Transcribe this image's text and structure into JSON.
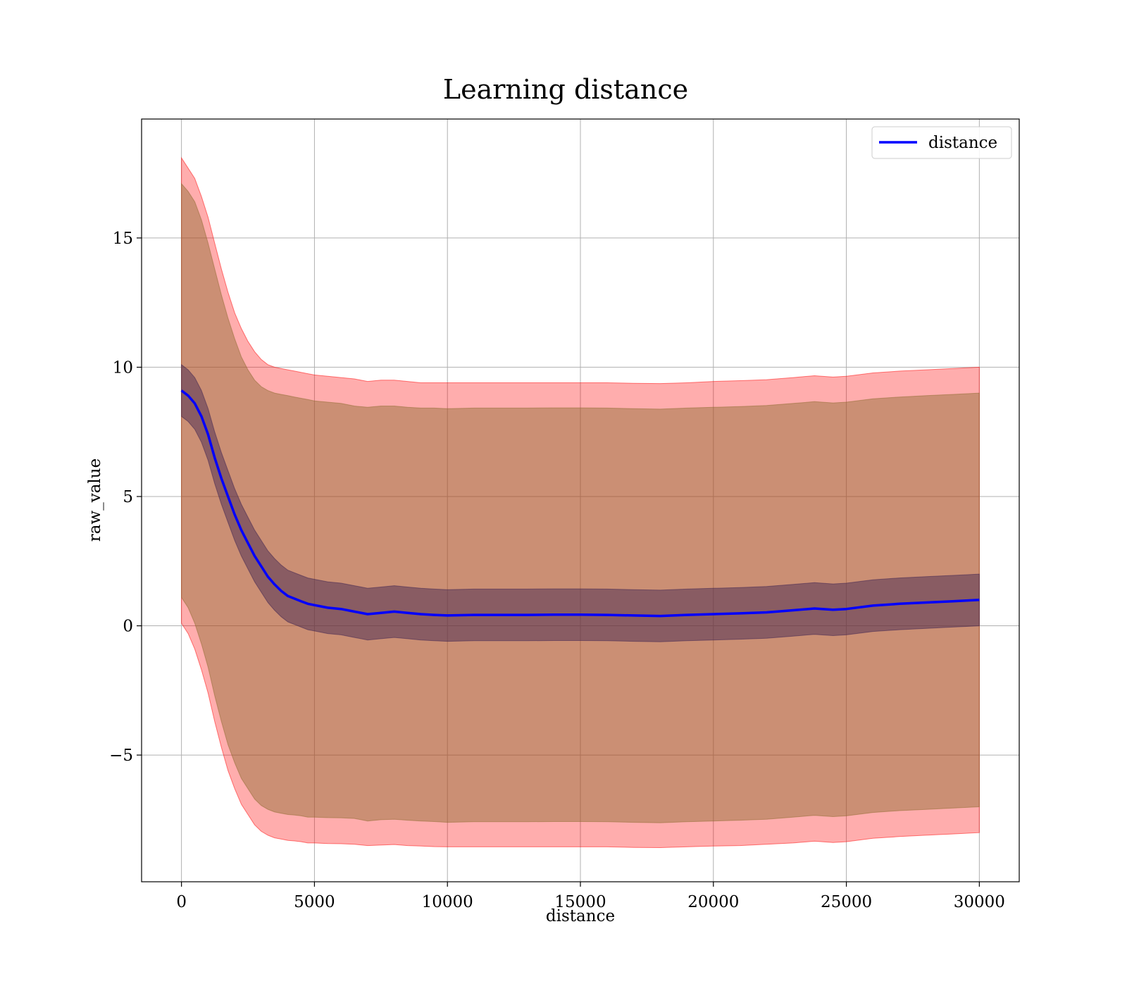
{
  "chart_data": {
    "type": "line",
    "title": "Learning distance",
    "xlabel": "distance",
    "ylabel": "raw_value",
    "xlim": [
      -1500,
      31500
    ],
    "ylim": [
      -9.9,
      19.6
    ],
    "xticks": [
      0,
      5000,
      10000,
      15000,
      20000,
      25000,
      30000
    ],
    "xtick_labels": [
      "0",
      "5000",
      "10000",
      "15000",
      "20000",
      "25000",
      "30000"
    ],
    "yticks": [
      -5,
      0,
      5,
      10,
      15
    ],
    "ytick_labels": [
      "−5",
      "0",
      "5",
      "10",
      "15"
    ],
    "grid": true,
    "legend": {
      "position": "upper-right",
      "entries": [
        "distance"
      ]
    },
    "colors": {
      "line": "#0000ff",
      "band_outer": "#ff0000",
      "band_mid": "#8b6a2e",
      "band_inner": "#3a2050"
    },
    "x": [
      0,
      250,
      500,
      750,
      1000,
      1250,
      1500,
      1750,
      2000,
      2250,
      2500,
      2750,
      3000,
      3250,
      3500,
      3750,
      4000,
      4250,
      4500,
      4750,
      5000,
      5500,
      6000,
      6500,
      7000,
      7500,
      8000,
      8500,
      9000,
      9500,
      10000,
      11000,
      12000,
      13000,
      14000,
      15000,
      16000,
      17000,
      18000,
      19000,
      20000,
      21000,
      22000,
      23000,
      23800,
      24500,
      25000,
      26000,
      27000,
      28000,
      29000,
      30000
    ],
    "series": [
      {
        "name": "distance",
        "values": [
          9.1,
          8.9,
          8.6,
          8.1,
          7.4,
          6.5,
          5.7,
          5.0,
          4.3,
          3.7,
          3.2,
          2.7,
          2.3,
          1.9,
          1.6,
          1.35,
          1.15,
          1.05,
          0.95,
          0.85,
          0.8,
          0.7,
          0.65,
          0.55,
          0.45,
          0.5,
          0.55,
          0.5,
          0.45,
          0.42,
          0.4,
          0.42,
          0.42,
          0.42,
          0.43,
          0.43,
          0.42,
          0.4,
          0.38,
          0.42,
          0.45,
          0.48,
          0.52,
          0.6,
          0.67,
          0.62,
          0.65,
          0.78,
          0.85,
          0.9,
          0.95,
          1.0
        ]
      }
    ],
    "bands": [
      {
        "upper": [
          18.1,
          17.7,
          17.3,
          16.6,
          15.8,
          14.8,
          13.8,
          12.9,
          12.1,
          11.5,
          11.0,
          10.6,
          10.3,
          10.1,
          10.0,
          9.95,
          9.9,
          9.85,
          9.8,
          9.75,
          9.7,
          9.65,
          9.6,
          9.55,
          9.45,
          9.5,
          9.5,
          9.45,
          9.4,
          9.4,
          9.4,
          9.4,
          9.4,
          9.4,
          9.4,
          9.4,
          9.4,
          9.38,
          9.37,
          9.4,
          9.45,
          9.48,
          9.52,
          9.6,
          9.67,
          9.62,
          9.65,
          9.78,
          9.85,
          9.9,
          9.95,
          10.0
        ],
        "lower": [
          0.1,
          -0.3,
          -0.9,
          -1.7,
          -2.6,
          -3.7,
          -4.7,
          -5.6,
          -6.3,
          -6.9,
          -7.3,
          -7.7,
          -7.95,
          -8.1,
          -8.2,
          -8.25,
          -8.3,
          -8.32,
          -8.35,
          -8.4,
          -8.4,
          -8.42,
          -8.43,
          -8.45,
          -8.5,
          -8.48,
          -8.46,
          -8.5,
          -8.52,
          -8.54,
          -8.55,
          -8.55,
          -8.55,
          -8.55,
          -8.55,
          -8.55,
          -8.55,
          -8.57,
          -8.58,
          -8.55,
          -8.52,
          -8.5,
          -8.45,
          -8.4,
          -8.33,
          -8.38,
          -8.35,
          -8.22,
          -8.15,
          -8.1,
          -8.05,
          -8.0
        ]
      },
      {
        "upper": [
          17.1,
          16.8,
          16.4,
          15.7,
          14.8,
          13.8,
          12.8,
          11.9,
          11.1,
          10.4,
          9.9,
          9.5,
          9.25,
          9.1,
          9.0,
          8.95,
          8.9,
          8.85,
          8.8,
          8.75,
          8.7,
          8.65,
          8.6,
          8.5,
          8.45,
          8.5,
          8.5,
          8.45,
          8.42,
          8.42,
          8.4,
          8.42,
          8.42,
          8.42,
          8.43,
          8.43,
          8.42,
          8.4,
          8.38,
          8.42,
          8.45,
          8.48,
          8.52,
          8.6,
          8.67,
          8.62,
          8.65,
          8.78,
          8.85,
          8.9,
          8.95,
          9.0
        ],
        "lower": [
          1.1,
          0.7,
          0.1,
          -0.7,
          -1.6,
          -2.7,
          -3.7,
          -4.6,
          -5.3,
          -5.9,
          -6.3,
          -6.7,
          -6.95,
          -7.1,
          -7.2,
          -7.25,
          -7.3,
          -7.32,
          -7.35,
          -7.4,
          -7.4,
          -7.42,
          -7.43,
          -7.45,
          -7.55,
          -7.5,
          -7.48,
          -7.52,
          -7.55,
          -7.57,
          -7.6,
          -7.58,
          -7.58,
          -7.58,
          -7.57,
          -7.57,
          -7.58,
          -7.6,
          -7.62,
          -7.58,
          -7.55,
          -7.52,
          -7.48,
          -7.4,
          -7.33,
          -7.38,
          -7.35,
          -7.22,
          -7.15,
          -7.1,
          -7.05,
          -7.0
        ]
      },
      {
        "upper": [
          10.1,
          9.9,
          9.6,
          9.1,
          8.4,
          7.5,
          6.7,
          6.0,
          5.3,
          4.7,
          4.2,
          3.7,
          3.3,
          2.9,
          2.6,
          2.35,
          2.15,
          2.05,
          1.95,
          1.85,
          1.8,
          1.7,
          1.65,
          1.55,
          1.45,
          1.5,
          1.55,
          1.5,
          1.45,
          1.42,
          1.4,
          1.42,
          1.42,
          1.42,
          1.43,
          1.43,
          1.42,
          1.4,
          1.38,
          1.42,
          1.45,
          1.48,
          1.52,
          1.6,
          1.67,
          1.62,
          1.65,
          1.78,
          1.85,
          1.9,
          1.95,
          2.0
        ],
        "lower": [
          8.1,
          7.9,
          7.6,
          7.1,
          6.4,
          5.5,
          4.7,
          4.0,
          3.3,
          2.7,
          2.2,
          1.7,
          1.3,
          0.9,
          0.6,
          0.35,
          0.15,
          0.05,
          -0.05,
          -0.15,
          -0.2,
          -0.3,
          -0.35,
          -0.45,
          -0.55,
          -0.5,
          -0.45,
          -0.5,
          -0.55,
          -0.58,
          -0.6,
          -0.58,
          -0.58,
          -0.58,
          -0.57,
          -0.57,
          -0.58,
          -0.6,
          -0.62,
          -0.58,
          -0.55,
          -0.52,
          -0.48,
          -0.4,
          -0.33,
          -0.38,
          -0.35,
          -0.22,
          -0.15,
          -0.1,
          -0.05,
          0.0
        ]
      }
    ]
  }
}
